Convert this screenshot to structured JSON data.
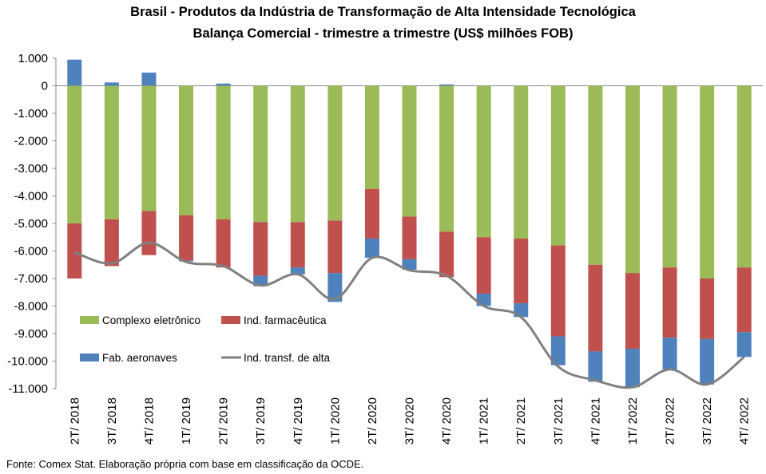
{
  "chart_data": {
    "type": "bar",
    "title": "Brasil - Produtos da Indústria de Transformação  de Alta Intensidade Tecnológica",
    "subtitle": "Balança Comercial - trimestre a trimestre (US$ milhões FOB)",
    "source": "Fonte: Comex Stat. Elaboração própria com base em classificação da OCDE.",
    "stacked": true,
    "categories": [
      "2T/ 2018",
      "3T/ 2018",
      "4T/ 2018",
      "1T/ 2019",
      "2T/ 2019",
      "3T/ 2019",
      "4T/ 2019",
      "1T/ 2020",
      "2T/ 2020",
      "3T/ 2020",
      "4T/ 2020",
      "1T/ 2021",
      "2T/ 2021",
      "3T/ 2021",
      "4T/ 2021",
      "1T/ 2022",
      "2T/ 2022",
      "3T/ 2022",
      "4T/ 2022"
    ],
    "y_ticks": [
      "1.000",
      "0",
      "-1.000",
      "-2.000",
      "-3.000",
      "-4.000",
      "-5.000",
      "-6.000",
      "-7.000",
      "-8.000",
      "-9.000",
      "-10.000",
      "-11.000"
    ],
    "ylim": [
      -11000,
      1000
    ],
    "series": [
      {
        "name": "Complexo eletrônico",
        "type": "bar",
        "color": "#9bbb59",
        "values": [
          -5000,
          -4850,
          -4550,
          -4700,
          -4850,
          -4950,
          -4950,
          -4900,
          -3750,
          -4750,
          -5300,
          -5500,
          -5550,
          -5800,
          -6500,
          -6800,
          -6600,
          -7000,
          -6600
        ]
      },
      {
        "name": "Ind. farmacêutica",
        "type": "bar",
        "color": "#c0504d",
        "values": [
          -2000,
          -1700,
          -1600,
          -1650,
          -1750,
          -1950,
          -1650,
          -1900,
          -1800,
          -1550,
          -1650,
          -2050,
          -2350,
          -3300,
          -3150,
          -2750,
          -2550,
          -2200,
          -2350
        ]
      },
      {
        "name": "Fab. aeronaves",
        "type": "bar",
        "color": "#4f81bd",
        "values": [
          950,
          120,
          480,
          -30,
          80,
          -380,
          -250,
          -1050,
          -700,
          -380,
          50,
          -450,
          -500,
          -1050,
          -1100,
          -1400,
          -1150,
          -1650,
          -900
        ]
      },
      {
        "name": "Ind. transf. de alta",
        "type": "line",
        "color": "#808080",
        "values": [
          -6050,
          -6450,
          -5700,
          -6400,
          -6550,
          -7250,
          -6850,
          -7750,
          -6250,
          -6700,
          -6900,
          -8000,
          -8400,
          -10200,
          -10700,
          -10950,
          -10300,
          -10850,
          -9850
        ]
      }
    ],
    "legend": [
      {
        "label": "Complexo eletrônico",
        "color": "#9bbb59",
        "kind": "bar"
      },
      {
        "label": "Ind. farmacêutica",
        "color": "#c0504d",
        "kind": "bar"
      },
      {
        "label": "Fab. aeronaves",
        "color": "#4f81bd",
        "kind": "bar"
      },
      {
        "label": "Ind. transf. de alta",
        "color": "#808080",
        "kind": "line"
      }
    ],
    "legend_position": "lower-left (inside plot)",
    "grid": false
  }
}
